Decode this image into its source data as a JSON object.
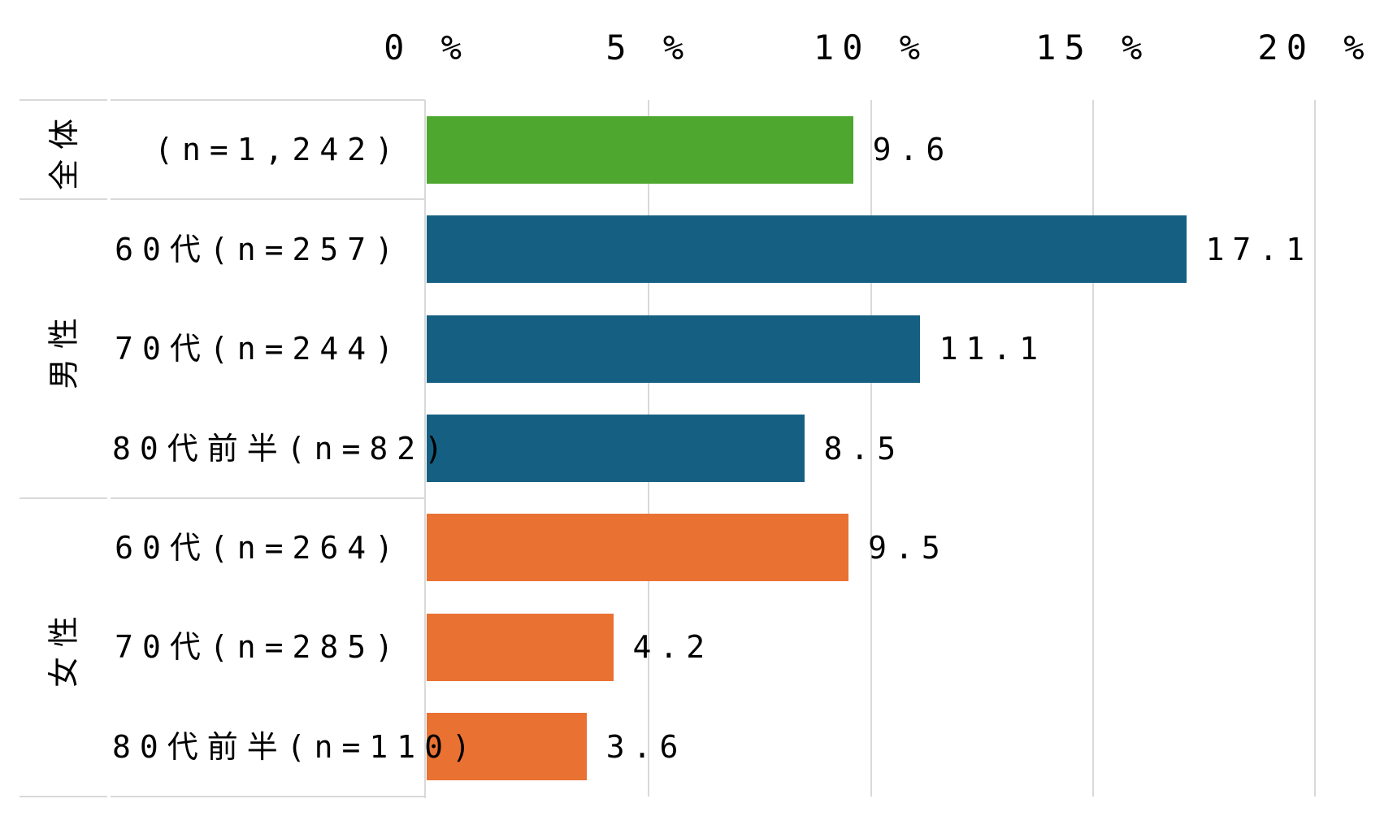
{
  "chart_data": {
    "type": "bar",
    "orientation": "horizontal",
    "title": "",
    "xlim": [
      0,
      20
    ],
    "grid": true,
    "value_labels_shown": true,
    "x_ticks": [
      {
        "value": 0,
        "label": "0 %"
      },
      {
        "value": 5,
        "label": "5 %"
      },
      {
        "value": 10,
        "label": "10 %"
      },
      {
        "value": 15,
        "label": "15 %"
      },
      {
        "value": 20,
        "label": "20 %"
      }
    ],
    "groups": [
      {
        "label": "全体",
        "bar_color": "#4EA72E",
        "rows": [
          {
            "label": "(n=1,242)",
            "value": 9.6
          }
        ]
      },
      {
        "label": "男性",
        "bar_color": "#156082",
        "rows": [
          {
            "label": "60代(n=257)",
            "value": 17.1
          },
          {
            "label": "70代(n=244)",
            "value": 11.1
          },
          {
            "label": "80代前半(n=82)",
            "value": 8.5
          }
        ]
      },
      {
        "label": "女性",
        "bar_color": "#E97132",
        "rows": [
          {
            "label": "60代(n=264)",
            "value": 9.5
          },
          {
            "label": "70代(n=285)",
            "value": 4.2
          },
          {
            "label": "80代前半(n=110)",
            "value": 3.6
          }
        ]
      }
    ],
    "colors": {
      "gridline": "#D9D9D9",
      "border": "#D9D9D9",
      "text": "#000000",
      "background": "#FFFFFF"
    }
  }
}
